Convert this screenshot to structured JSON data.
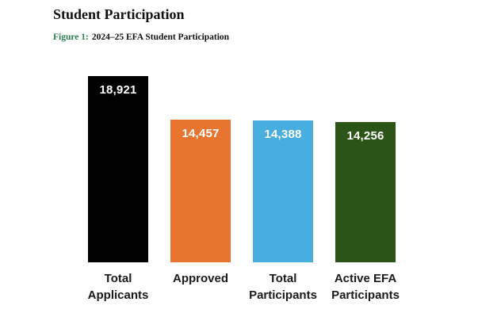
{
  "header": {
    "title": "Student Participation"
  },
  "figure": {
    "label": "Figure 1:",
    "title": "2024–25 EFA Student Participation"
  },
  "chart_data": {
    "type": "bar",
    "title": "2024–25 EFA Student Participation",
    "categories": [
      "Total\nApplicants",
      "Approved",
      "Total\nParticipants",
      "Active EFA\nParticipants"
    ],
    "values": [
      18921,
      14457,
      14388,
      14256
    ],
    "value_labels": [
      "18,921",
      "14,457",
      "14,388",
      "14,256"
    ],
    "colors": [
      "#000000",
      "#e8752f",
      "#47aedf",
      "#2b5517"
    ],
    "value_label_color": "#ffffff",
    "data_labels_position": "inside-top",
    "xlabel": "",
    "ylabel": "",
    "ylim": [
      0,
      18921
    ],
    "grid": false,
    "legend": false,
    "axis_lines": false
  }
}
